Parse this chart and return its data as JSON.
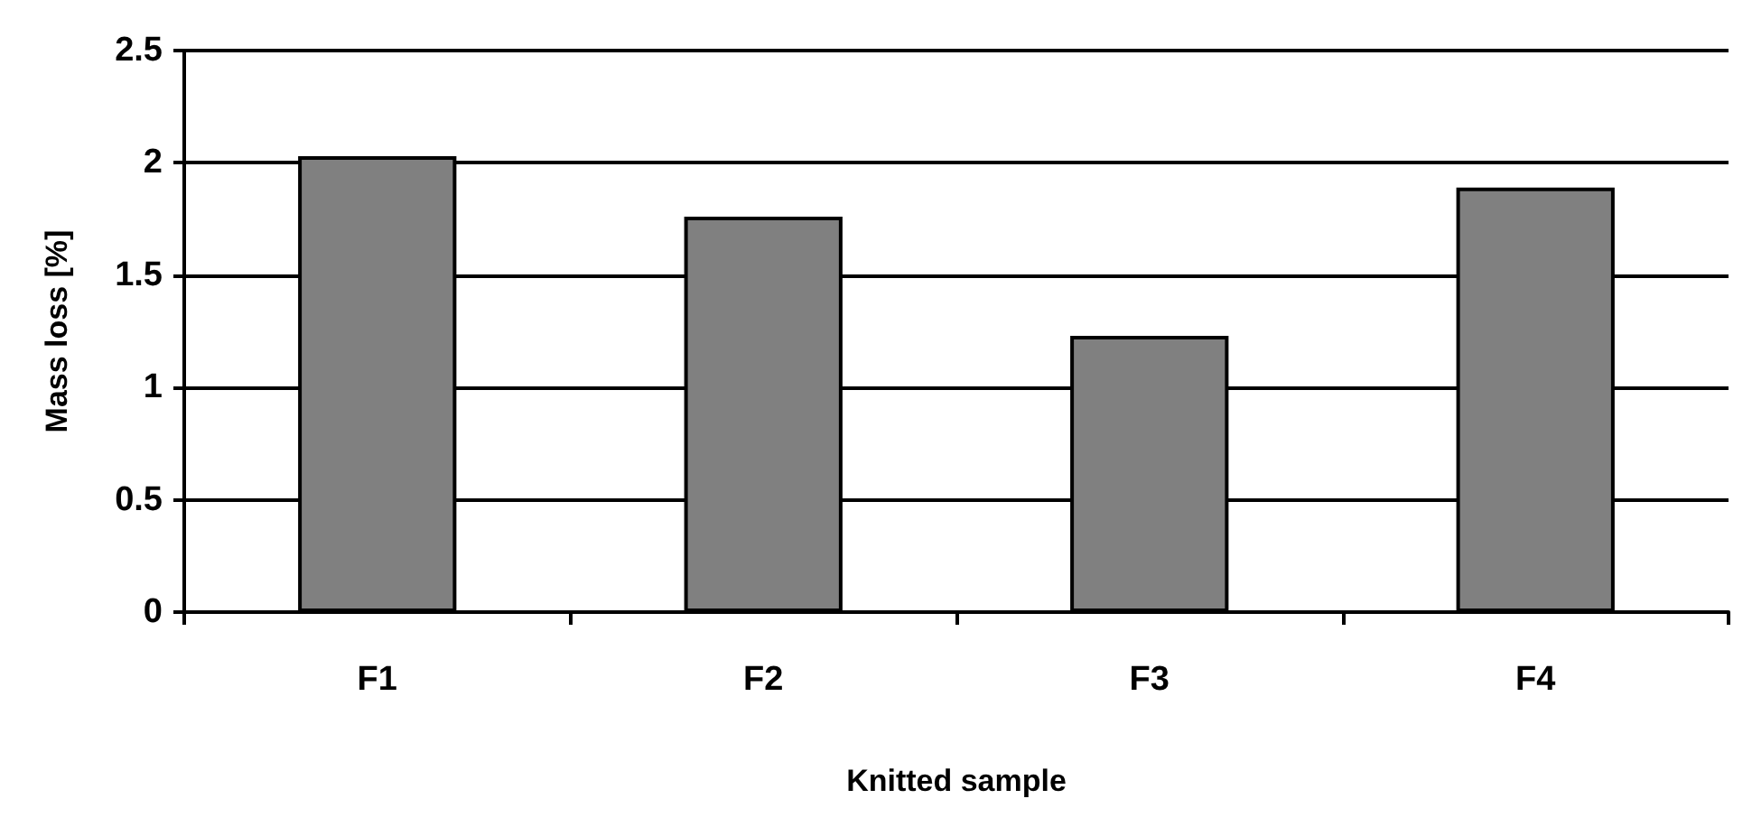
{
  "chart_data": {
    "type": "bar",
    "xlabel": "Knitted sample",
    "ylabel": "Mass loss [%]",
    "categories": [
      "F1",
      "F2",
      "F3",
      "F4"
    ],
    "values": [
      2.03,
      1.76,
      1.23,
      1.89
    ],
    "color": "#808080",
    "ylim": [
      0,
      2.5
    ],
    "yticks": [
      0,
      0.5,
      1,
      1.5,
      2,
      2.5
    ],
    "grid": "y"
  }
}
